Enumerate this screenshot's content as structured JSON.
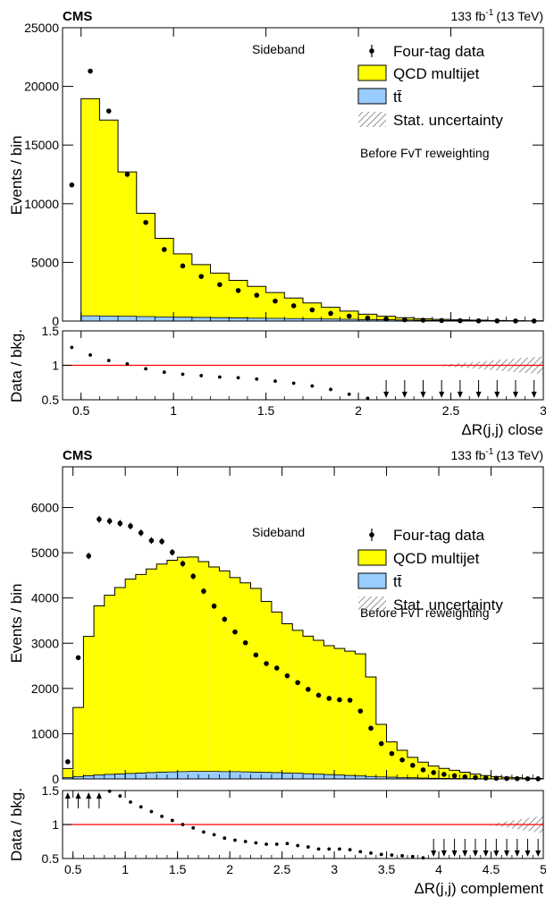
{
  "colors": {
    "qcd_fill": "#ffff00",
    "ttbar_fill": "#99ccff",
    "ratio_line": "#ff0000",
    "data_marker": "#000000",
    "uncertainty_hatch": "#808080"
  },
  "chart_data": [
    {
      "type": "bar",
      "experiment": "CMS",
      "lumi_label": "133 fb",
      "lumi_exp": "-1",
      "lumi_energy": "(13 TeV)",
      "region_label": "Sideband",
      "note": "Before FvT reweighting",
      "legend": [
        {
          "label": "Four-tag data",
          "icon": "data-marker-icon"
        },
        {
          "label": "QCD multijet",
          "icon": "yellow-box-icon"
        },
        {
          "label": "tt̄",
          "icon": "blue-box-icon"
        },
        {
          "label": "Stat. uncertainty",
          "icon": "hatch-box-icon"
        }
      ],
      "ylabel": "Events / bin",
      "ratio_ylabel": "Data / bkg.",
      "xlabel": "ΔR(j,j) close",
      "xlim": [
        0.4,
        3.0
      ],
      "ylim": [
        0,
        25000
      ],
      "ratio_ylim": [
        0.5,
        1.5
      ],
      "x_ticks": [
        "0.5",
        "1",
        "1.5",
        "2",
        "2.5",
        "3"
      ],
      "x_tick_values": [
        0.5,
        1,
        1.5,
        2,
        2.5,
        3
      ],
      "y_ticks": [
        "0",
        "5000",
        "10000",
        "15000",
        "20000",
        "25000"
      ],
      "y_tick_values": [
        0,
        5000,
        10000,
        15000,
        20000,
        25000
      ],
      "ratio_ticks": [
        "0.5",
        "1",
        "1.5"
      ],
      "ratio_tick_values": [
        0.5,
        1,
        1.5
      ],
      "bin_edges": [
        0.4,
        0.5,
        0.6,
        0.7,
        0.8,
        0.9,
        1.0,
        1.1,
        1.2,
        1.3,
        1.4,
        1.5,
        1.6,
        1.7,
        1.8,
        1.9,
        2.0,
        2.1,
        2.2,
        2.3,
        2.4,
        2.5,
        2.6,
        2.7,
        2.8,
        2.9,
        3.0
      ],
      "qcd": [
        0,
        18500,
        16700,
        12300,
        8800,
        6700,
        5400,
        4500,
        3800,
        3200,
        2700,
        2200,
        1750,
        1350,
        1000,
        700,
        450,
        300,
        200,
        130,
        90,
        60,
        40,
        25,
        15,
        10
      ],
      "ttbar": [
        0,
        450,
        430,
        410,
        380,
        350,
        330,
        310,
        290,
        270,
        250,
        230,
        210,
        190,
        170,
        150,
        130,
        110,
        90,
        70,
        55,
        45,
        35,
        25,
        18,
        12
      ],
      "data_x": [
        0.45,
        0.55,
        0.65,
        0.75,
        0.85,
        0.95,
        1.05,
        1.15,
        1.25,
        1.35,
        1.45,
        1.55,
        1.65,
        1.75,
        1.85,
        1.95,
        2.05,
        2.15,
        2.25,
        2.35,
        2.45,
        2.55,
        2.65,
        2.75,
        2.85,
        2.95
      ],
      "data_y": [
        11600,
        21300,
        17900,
        12500,
        8400,
        6100,
        4700,
        3800,
        3100,
        2600,
        2200,
        1700,
        1300,
        950,
        650,
        420,
        260,
        170,
        110,
        70,
        45,
        30,
        18,
        12,
        8,
        6
      ],
      "ratio_y": [
        1.26,
        1.15,
        1.07,
        1.02,
        0.95,
        0.9,
        0.87,
        0.85,
        0.83,
        0.82,
        0.8,
        0.77,
        0.74,
        0.7,
        0.65,
        0.58,
        0.52,
        0.49,
        0.47,
        0.46,
        0.45,
        0.45,
        0.44,
        0.42,
        0.4,
        0.39
      ],
      "uncertainty_start": 2.4
    },
    {
      "type": "bar",
      "experiment": "CMS",
      "lumi_label": "133 fb",
      "lumi_exp": "-1",
      "lumi_energy": "(13 TeV)",
      "region_label": "Sideband",
      "note": "Before FvT reweighting",
      "legend": [
        {
          "label": "Four-tag data",
          "icon": "data-marker-icon"
        },
        {
          "label": "QCD multijet",
          "icon": "yellow-box-icon"
        },
        {
          "label": "tt̄",
          "icon": "blue-box-icon"
        },
        {
          "label": "Stat. uncertainty",
          "icon": "hatch-box-icon"
        }
      ],
      "ylabel": "Events / bin",
      "ratio_ylabel": "Data / bkg.",
      "xlabel": "ΔR(j,j) complement",
      "xlim": [
        0.4,
        5.0
      ],
      "ylim": [
        0,
        6900
      ],
      "ratio_ylim": [
        0.5,
        1.5
      ],
      "x_ticks": [
        "0.5",
        "1",
        "1.5",
        "2",
        "2.5",
        "3",
        "3.5",
        "4",
        "4.5",
        "5"
      ],
      "x_tick_values": [
        0.5,
        1,
        1.5,
        2,
        2.5,
        3,
        3.5,
        4,
        4.5,
        5
      ],
      "y_ticks": [
        "0",
        "1000",
        "2000",
        "3000",
        "4000",
        "5000",
        "6000"
      ],
      "y_tick_values": [
        0,
        1000,
        2000,
        3000,
        4000,
        5000,
        6000
      ],
      "ratio_ticks": [
        "0.5",
        "1",
        "1.5"
      ],
      "ratio_tick_values": [
        0.5,
        1,
        1.5
      ],
      "bin_edges": [
        0.4,
        0.5,
        0.6,
        0.7,
        0.8,
        0.9,
        1.0,
        1.1,
        1.2,
        1.3,
        1.4,
        1.5,
        1.6,
        1.7,
        1.8,
        1.9,
        2.0,
        2.1,
        2.2,
        2.3,
        2.4,
        2.5,
        2.6,
        2.7,
        2.8,
        2.9,
        3.0,
        3.1,
        3.2,
        3.3,
        3.4,
        3.5,
        3.6,
        3.7,
        3.8,
        3.9,
        4.0,
        4.1,
        4.2,
        4.3,
        4.4,
        4.5,
        4.6,
        4.7,
        4.8,
        4.9,
        5.0
      ],
      "qcd": [
        200,
        1530,
        3080,
        3740,
        3960,
        4120,
        4300,
        4390,
        4500,
        4600,
        4680,
        4740,
        4740,
        4640,
        4520,
        4440,
        4290,
        4180,
        4060,
        3780,
        3550,
        3300,
        3160,
        3040,
        2960,
        2850,
        2800,
        2750,
        2700,
        2200,
        1160,
        780,
        600,
        450,
        350,
        270,
        220,
        180,
        140,
        100,
        70,
        50,
        35,
        25,
        15,
        10
      ],
      "ttbar": [
        30,
        50,
        70,
        85,
        100,
        110,
        120,
        130,
        140,
        150,
        155,
        160,
        165,
        165,
        165,
        160,
        160,
        155,
        150,
        145,
        140,
        130,
        125,
        115,
        105,
        95,
        85,
        75,
        65,
        55,
        45,
        38,
        32,
        26,
        20,
        15,
        12,
        10,
        8,
        6,
        4,
        3,
        2,
        2,
        1,
        1
      ],
      "data_x": [
        0.45,
        0.55,
        0.65,
        0.75,
        0.85,
        0.95,
        1.05,
        1.15,
        1.25,
        1.35,
        1.45,
        1.55,
        1.65,
        1.75,
        1.85,
        1.95,
        2.05,
        2.15,
        2.25,
        2.35,
        2.45,
        2.55,
        2.65,
        2.75,
        2.85,
        2.95,
        3.05,
        3.15,
        3.25,
        3.35,
        3.45,
        3.55,
        3.65,
        3.75,
        3.85,
        3.95,
        4.05,
        4.15,
        4.25,
        4.35,
        4.45,
        4.55,
        4.65,
        4.75,
        4.85,
        4.95
      ],
      "data_y": [
        380,
        2680,
        4930,
        5740,
        5700,
        5650,
        5590,
        5440,
        5270,
        5250,
        5010,
        4760,
        4480,
        4150,
        3820,
        3530,
        3250,
        3010,
        2740,
        2550,
        2450,
        2280,
        2130,
        1980,
        1850,
        1780,
        1750,
        1740,
        1500,
        1120,
        780,
        560,
        420,
        300,
        200,
        140,
        100,
        70,
        45,
        30,
        20,
        15,
        10,
        6,
        4,
        3
      ],
      "ratio_y": [
        1.9,
        1.75,
        1.6,
        1.52,
        1.49,
        1.42,
        1.33,
        1.26,
        1.19,
        1.12,
        1.06,
        1.0,
        0.95,
        0.89,
        0.85,
        0.8,
        0.77,
        0.75,
        0.73,
        0.71,
        0.71,
        0.72,
        0.69,
        0.67,
        0.64,
        0.64,
        0.64,
        0.63,
        0.6,
        0.58,
        0.56,
        0.55,
        0.54,
        0.53,
        0.51,
        0.49,
        0.47,
        0.46,
        0.45,
        0.44,
        0.43,
        0.42,
        0.42,
        0.41,
        0.4,
        0.39
      ],
      "uncertainty_start": 4.45
    }
  ]
}
